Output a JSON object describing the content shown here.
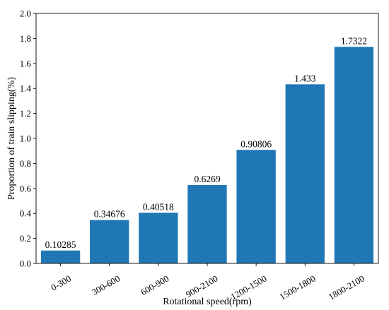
{
  "chart_data": {
    "type": "bar",
    "categories": [
      "0-300",
      "300-600",
      "600-900",
      "900-2100",
      "1200-1500",
      "1500-1800",
      "1800-2100"
    ],
    "values": [
      0.10285,
      0.34676,
      0.40518,
      0.6269,
      0.90806,
      1.433,
      1.7322
    ],
    "value_labels": [
      "0.10285",
      "0.34676",
      "0.40518",
      "0.6269",
      "0.90806",
      "1.433",
      "1.7322"
    ],
    "xlabel": "Rotational speed(rpm)",
    "ylabel": "Proportion of train slipping(%)",
    "ylim": [
      0,
      2.0
    ],
    "yticks": [
      "0.0",
      "0.2",
      "0.4",
      "0.6",
      "0.8",
      "1.0",
      "1.2",
      "1.4",
      "1.6",
      "1.8",
      "2.0"
    ],
    "grid": false,
    "bar_color": "#1f77b4"
  }
}
